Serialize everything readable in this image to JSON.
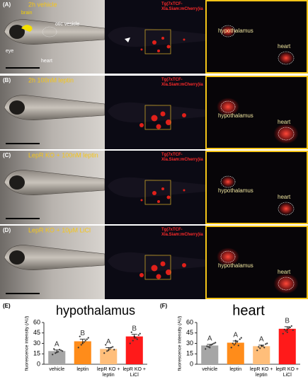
{
  "panels": [
    {
      "label": "(A)",
      "condition": "2h vehicle",
      "transgene": "Tg(7xTCF-Xla.Siam:mCherry)ia",
      "annotations": [
        "brain",
        "otic vesicle",
        "eye",
        "heart"
      ],
      "zoom_labels": [
        "hypothalamus",
        "heart"
      ]
    },
    {
      "label": "(B)",
      "condition": "2h 100nM leptin",
      "transgene": "Tg(7xTCF-Xla.Siam:mCherry)ia",
      "zoom_labels": [
        "hypothalamus",
        "heart"
      ]
    },
    {
      "label": "(C)",
      "condition": "LepR KO + 100nM leptin",
      "transgene": "Tg(7xTCF-Xla.Siam:mCherry)ia",
      "zoom_labels": [
        "hypothalamus",
        "heart"
      ]
    },
    {
      "label": "(D)",
      "condition": "LepR KO + 10μM LiCl",
      "transgene": "Tg(7xTCF-Xla.Siam:mCherry)ia",
      "zoom_labels": [
        "hypothalamus",
        "heart"
      ]
    }
  ],
  "chart_labels": [
    "(E)",
    "(F)"
  ],
  "chart_data": [
    {
      "type": "bar",
      "title": "hypothalamus",
      "y_label": "fluorescence intensity (AU)",
      "categories": [
        "vehicle",
        "leptin",
        "lepR KO + leptin",
        "lepR KO + LiCl"
      ],
      "values": [
        19,
        33,
        22,
        40
      ],
      "errors": [
        1.5,
        3,
        2,
        3
      ],
      "colors": [
        "#a6a6a6",
        "#ff8c1a",
        "#ffbe7a",
        "#ff1a1a"
      ],
      "letters": [
        "A",
        "B",
        "A",
        "B"
      ],
      "points": [
        [
          14,
          16,
          18,
          20,
          22,
          17,
          21,
          19
        ],
        [
          24,
          28,
          32,
          36,
          40,
          30,
          34,
          38
        ],
        [
          16,
          19,
          22,
          25,
          28,
          20,
          24,
          21
        ],
        [
          30,
          34,
          38,
          42,
          46,
          40,
          36,
          44
        ]
      ],
      "ylim": [
        0,
        60
      ],
      "yticks": [
        0,
        15,
        30,
        45,
        60
      ]
    },
    {
      "type": "bar",
      "title": "heart",
      "y_label": "fluorescence intensity (AU)",
      "categories": [
        "vehicle",
        "leptin",
        "lepR KO + leptin",
        "lepR KO + LiCl"
      ],
      "values": [
        27,
        31,
        26,
        51
      ],
      "errors": [
        1.5,
        2.5,
        1.5,
        3
      ],
      "colors": [
        "#a6a6a6",
        "#ff8c1a",
        "#ffbe7a",
        "#ff1a1a"
      ],
      "letters": [
        "A",
        "A",
        "A",
        "B"
      ],
      "points": [
        [
          22,
          25,
          28,
          30,
          26,
          24,
          29,
          31
        ],
        [
          24,
          28,
          32,
          36,
          30,
          34,
          27,
          38
        ],
        [
          20,
          23,
          26,
          29,
          25,
          27,
          24,
          30
        ],
        [
          44,
          48,
          52,
          55,
          50,
          46,
          53,
          49
        ]
      ],
      "ylim": [
        0,
        60
      ],
      "yticks": [
        0,
        15,
        30,
        45,
        60
      ]
    }
  ]
}
